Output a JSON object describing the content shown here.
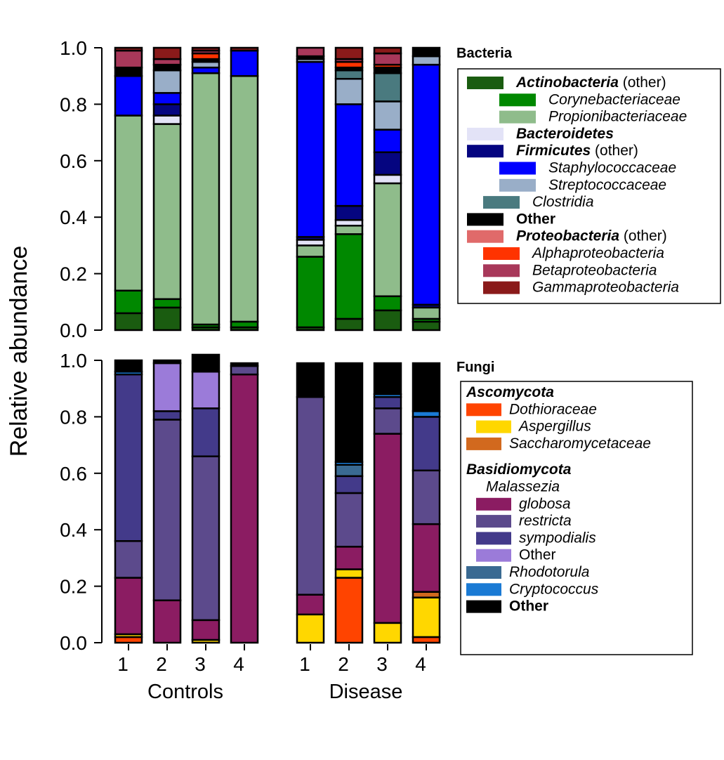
{
  "y_axis_label": "Relative abundance",
  "groups": [
    "Controls",
    "Disease"
  ],
  "sample_labels": [
    "1",
    "2",
    "3",
    "4"
  ],
  "y_ticks": [
    "0.0",
    "0.2",
    "0.4",
    "0.6",
    "0.8",
    "1.0"
  ],
  "chart_data": [
    {
      "type": "bar",
      "stacked": true,
      "title": "Bacteria",
      "ylim": [
        0,
        1
      ],
      "grid": false,
      "legend_placement": "right",
      "categories": [
        "Controls 1",
        "Controls 2",
        "Controls 3",
        "Controls 4",
        "Disease 1",
        "Disease 2",
        "Disease 3",
        "Disease 4"
      ],
      "series": [
        {
          "name": "Actinobacteria (other)",
          "color": "#1a5c10",
          "values": [
            0.06,
            0.08,
            0.01,
            0.01,
            0.01,
            0.04,
            0.07,
            0.03
          ]
        },
        {
          "name": "Corynebacteriaceae",
          "color": "#008800",
          "values": [
            0.08,
            0.03,
            0.01,
            0.02,
            0.25,
            0.3,
            0.05,
            0.01
          ]
        },
        {
          "name": "Propionibacteriaceae",
          "color": "#8fbc8b",
          "values": [
            0.62,
            0.62,
            0.89,
            0.87,
            0.04,
            0.03,
            0.4,
            0.04
          ]
        },
        {
          "name": "Bacteroidetes",
          "color": "#e3e3f7",
          "values": [
            0.0,
            0.03,
            0.0,
            0.0,
            0.02,
            0.02,
            0.03,
            0.0
          ]
        },
        {
          "name": "Firmicutes (other)",
          "color": "#050580",
          "values": [
            0.0,
            0.04,
            0.0,
            0.0,
            0.01,
            0.05,
            0.08,
            0.01
          ]
        },
        {
          "name": "Staphylococcaceae",
          "color": "#0000ff",
          "values": [
            0.14,
            0.04,
            0.02,
            0.09,
            0.62,
            0.36,
            0.08,
            0.85
          ]
        },
        {
          "name": "Streptococcaceae",
          "color": "#99aec8",
          "values": [
            0.0,
            0.08,
            0.02,
            0.0,
            0.01,
            0.09,
            0.1,
            0.03
          ]
        },
        {
          "name": "Clostridia",
          "color": "#4a7a7f",
          "values": [
            0.0,
            0.0,
            0.0,
            0.0,
            0.0,
            0.03,
            0.1,
            0.0
          ]
        },
        {
          "name": "Other",
          "color": "#000000",
          "values": [
            0.03,
            0.02,
            0.01,
            0.0,
            0.01,
            0.01,
            0.02,
            0.03
          ]
        },
        {
          "name": "Proteobacteria (other)",
          "color": "#e06a6a",
          "values": [
            0.0,
            0.0,
            0.0,
            0.0,
            0.0,
            0.0,
            0.0,
            0.0
          ]
        },
        {
          "name": "Alphaproteobacteria",
          "color": "#ff3300",
          "values": [
            0.0,
            0.0,
            0.02,
            0.0,
            0.0,
            0.02,
            0.01,
            0.0
          ]
        },
        {
          "name": "Betaproteobacteria",
          "color": "#a8385a",
          "values": [
            0.06,
            0.02,
            0.01,
            0.0,
            0.03,
            0.01,
            0.04,
            0.0
          ]
        },
        {
          "name": "Gammaproteobacteria",
          "color": "#8a1a1a",
          "values": [
            0.01,
            0.04,
            0.01,
            0.01,
            0.0,
            0.04,
            0.02,
            0.0
          ]
        }
      ]
    },
    {
      "type": "bar",
      "stacked": true,
      "title": "Fungi",
      "ylim": [
        0,
        1
      ],
      "grid": false,
      "legend_placement": "right",
      "categories": [
        "Controls 1",
        "Controls 2",
        "Controls 3",
        "Controls 4",
        "Disease 1",
        "Disease 2",
        "Disease 3",
        "Disease 4"
      ],
      "series": [
        {
          "name": "Dothioraceae",
          "color": "#ff4400",
          "values": [
            0.02,
            0.0,
            0.0,
            0.0,
            0.0,
            0.23,
            0.0,
            0.02
          ]
        },
        {
          "name": "Aspergillus",
          "color": "#ffd700",
          "values": [
            0.01,
            0.0,
            0.01,
            0.0,
            0.1,
            0.03,
            0.07,
            0.14
          ]
        },
        {
          "name": "Saccharomycetaceae",
          "color": "#d2691e",
          "values": [
            0.0,
            0.0,
            0.0,
            0.0,
            0.0,
            0.0,
            0.0,
            0.02
          ]
        },
        {
          "name": "globosa",
          "color": "#8b1c62",
          "values": [
            0.2,
            0.15,
            0.07,
            0.95,
            0.07,
            0.08,
            0.67,
            0.24
          ]
        },
        {
          "name": "restricta",
          "color": "#5c4a8c",
          "values": [
            0.13,
            0.64,
            0.58,
            0.03,
            0.7,
            0.19,
            0.09,
            0.19
          ]
        },
        {
          "name": "sympodialis",
          "color": "#433a8a",
          "values": [
            0.59,
            0.03,
            0.17,
            0.0,
            0.0,
            0.06,
            0.04,
            0.19
          ]
        },
        {
          "name": "Malassezia Other",
          "color": "#9b7bd9",
          "values": [
            0.0,
            0.17,
            0.13,
            0.0,
            0.0,
            0.0,
            0.0,
            0.0
          ]
        },
        {
          "name": "Rhodotorula",
          "color": "#3a6a92",
          "values": [
            0.0,
            0.0,
            0.0,
            0.0,
            0.0,
            0.04,
            0.0,
            0.0
          ]
        },
        {
          "name": "Cryptococcus",
          "color": "#1a7ad4",
          "values": [
            0.01,
            0.0,
            0.0,
            0.0,
            0.0,
            0.01,
            0.01,
            0.02
          ]
        },
        {
          "name": "Other",
          "color": "#000000",
          "values": [
            0.04,
            0.01,
            0.06,
            0.01,
            0.12,
            0.35,
            0.11,
            0.17
          ]
        }
      ]
    }
  ],
  "legends": {
    "bacteria": [
      {
        "parts": [
          {
            "text": "Actinobacteria",
            "style": "bi"
          },
          {
            "text": " (other)",
            "style": "n"
          }
        ],
        "color": "#1a5c10",
        "indent": 0
      },
      {
        "parts": [
          {
            "text": "Corynebacteriaceae",
            "style": "i"
          }
        ],
        "color": "#008800",
        "indent": 2
      },
      {
        "parts": [
          {
            "text": "Propionibacteriaceae",
            "style": "i"
          }
        ],
        "color": "#8fbc8b",
        "indent": 2
      },
      {
        "parts": [
          {
            "text": "Bacteroidetes",
            "style": "bi"
          }
        ],
        "color": "#e3e3f7",
        "indent": 0
      },
      {
        "parts": [
          {
            "text": "Firmicutes",
            "style": "bi"
          },
          {
            "text": " (other)",
            "style": "n"
          }
        ],
        "color": "#050580",
        "indent": 0
      },
      {
        "parts": [
          {
            "text": "Staphylococcaceae",
            "style": "i"
          }
        ],
        "color": "#0000ff",
        "indent": 2
      },
      {
        "parts": [
          {
            "text": "Streptococcaceae",
            "style": "i"
          }
        ],
        "color": "#99aec8",
        "indent": 2
      },
      {
        "parts": [
          {
            "text": "Clostridia",
            "style": "i"
          }
        ],
        "color": "#4a7a7f",
        "indent": 1
      },
      {
        "parts": [
          {
            "text": "Other",
            "style": "b"
          }
        ],
        "color": "#000000",
        "indent": 0
      },
      {
        "parts": [
          {
            "text": "Proteobacteria",
            "style": "bi"
          },
          {
            "text": " (other)",
            "style": "n"
          }
        ],
        "color": "#e06a6a",
        "indent": 0
      },
      {
        "parts": [
          {
            "text": "Alphaproteobacteria",
            "style": "i"
          }
        ],
        "color": "#ff3300",
        "indent": 1
      },
      {
        "parts": [
          {
            "text": "Betaproteobacteria",
            "style": "i"
          }
        ],
        "color": "#a8385a",
        "indent": 1
      },
      {
        "parts": [
          {
            "text": "Gammaproteobacteria",
            "style": "i"
          }
        ],
        "color": "#8a1a1a",
        "indent": 1
      }
    ],
    "fungi": [
      {
        "parts": [
          {
            "text": "Ascomycota",
            "style": "bi"
          }
        ],
        "color": null,
        "indent": 0,
        "kind": "header"
      },
      {
        "parts": [
          {
            "text": "Dothioraceae",
            "style": "i"
          }
        ],
        "color": "#ff4400",
        "indent": 0
      },
      {
        "parts": [
          {
            "text": "Aspergillus",
            "style": "i"
          }
        ],
        "color": "#ffd700",
        "indent": 1
      },
      {
        "parts": [
          {
            "text": "Saccharomycetaceae",
            "style": "i"
          }
        ],
        "color": "#d2691e",
        "indent": 0
      },
      {
        "parts": [
          {
            "text": "Basidiomycota",
            "style": "bi"
          }
        ],
        "color": null,
        "indent": 0,
        "kind": "header"
      },
      {
        "parts": [
          {
            "text": "Malassezia",
            "style": "i"
          }
        ],
        "color": null,
        "indent": 2,
        "kind": "subheader"
      },
      {
        "parts": [
          {
            "text": "globosa",
            "style": "i"
          }
        ],
        "color": "#8b1c62",
        "indent": 1
      },
      {
        "parts": [
          {
            "text": "restricta",
            "style": "i"
          }
        ],
        "color": "#5c4a8c",
        "indent": 1
      },
      {
        "parts": [
          {
            "text": "sympodialis",
            "style": "i"
          }
        ],
        "color": "#433a8a",
        "indent": 1
      },
      {
        "parts": [
          {
            "text": "Other",
            "style": "n"
          }
        ],
        "color": "#9b7bd9",
        "indent": 1
      },
      {
        "parts": [
          {
            "text": "Rhodotorula",
            "style": "i"
          }
        ],
        "color": "#3a6a92",
        "indent": 0
      },
      {
        "parts": [
          {
            "text": "Cryptococcus",
            "style": "i"
          }
        ],
        "color": "#1a7ad4",
        "indent": 0
      },
      {
        "parts": [
          {
            "text": "Other",
            "style": "b"
          }
        ],
        "color": "#000000",
        "indent": 0
      }
    ]
  }
}
